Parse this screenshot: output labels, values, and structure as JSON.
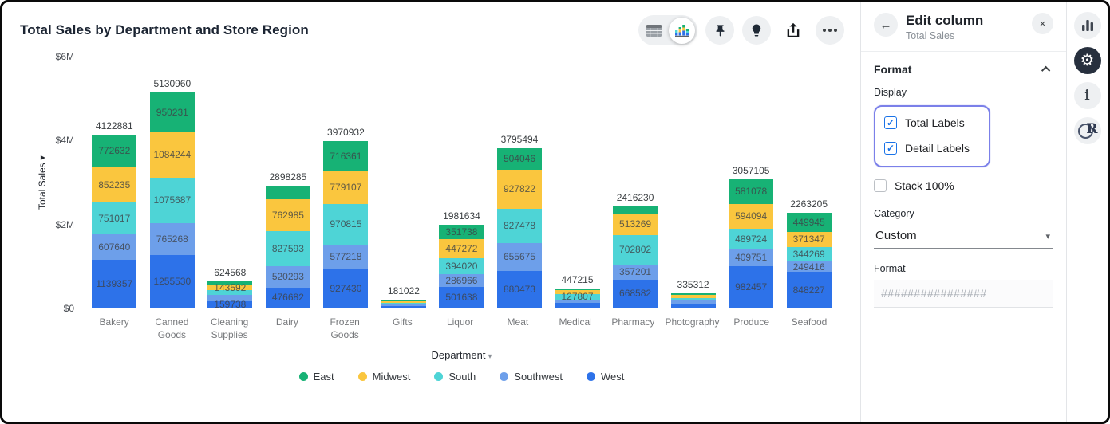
{
  "page_title": "Total Sales by Department and Store Region",
  "toolbar": {
    "icons": [
      "table-view",
      "chart-view",
      "pin",
      "suggest",
      "export",
      "more"
    ],
    "selected_view": "chart-view"
  },
  "chart_data": {
    "type": "bar",
    "subtype": "stacked-vertical",
    "title": "Total Sales by Department and Store Region",
    "xlabel": "Department",
    "ylabel": "Total Sales",
    "ylim": [
      0,
      6000000
    ],
    "y_ticks": [
      {
        "label": "$0",
        "value": 0
      },
      {
        "label": "$2M",
        "value": 2000000
      },
      {
        "label": "$4M",
        "value": 4000000
      },
      {
        "label": "$6M",
        "value": 6000000
      }
    ],
    "grid": false,
    "legend_position": "bottom",
    "series": [
      {
        "name": "East",
        "color": "#17B275"
      },
      {
        "name": "Midwest",
        "color": "#FAC63E"
      },
      {
        "name": "South",
        "color": "#4ED4D6"
      },
      {
        "name": "Southwest",
        "color": "#6D9FEA"
      },
      {
        "name": "West",
        "color": "#2D72E9"
      }
    ],
    "bars": [
      {
        "category": "Bakery",
        "total": 4122881,
        "segments": [
          {
            "region": "East",
            "value": 772632,
            "labeled": true
          },
          {
            "region": "Midwest",
            "value": 852235,
            "labeled": true
          },
          {
            "region": "South",
            "value": 751017,
            "labeled": true
          },
          {
            "region": "Southwest",
            "value": 607640,
            "labeled": true
          },
          {
            "region": "West",
            "value": 1139357,
            "labeled": true
          }
        ]
      },
      {
        "category": "Canned Goods",
        "total": 5130960,
        "segments": [
          {
            "region": "East",
            "value": 950231,
            "labeled": true
          },
          {
            "region": "Midwest",
            "value": 1084244,
            "labeled": true
          },
          {
            "region": "South",
            "value": 1075687,
            "labeled": true
          },
          {
            "region": "Southwest",
            "value": 765268,
            "labeled": true
          },
          {
            "region": "West",
            "value": 1255530,
            "labeled": true
          }
        ]
      },
      {
        "category": "Cleaning Supplies",
        "total": 624568,
        "segments": [
          {
            "region": "East",
            "value": 72000,
            "labeled": false,
            "estimated": true
          },
          {
            "region": "Midwest",
            "value": 143592,
            "labeled": true
          },
          {
            "region": "South",
            "value": 96000,
            "labeled": false,
            "estimated": true
          },
          {
            "region": "Southwest",
            "value": 153238,
            "labeled": false,
            "estimated": true
          },
          {
            "region": "West",
            "value": 159738,
            "labeled": true
          }
        ]
      },
      {
        "category": "Dairy",
        "total": 2898285,
        "segments": [
          {
            "region": "East",
            "value": 310732,
            "labeled": false
          },
          {
            "region": "Midwest",
            "value": 762985,
            "labeled": true
          },
          {
            "region": "South",
            "value": 827593,
            "labeled": true
          },
          {
            "region": "Southwest",
            "value": 520293,
            "labeled": true
          },
          {
            "region": "West",
            "value": 476682,
            "labeled": true
          }
        ]
      },
      {
        "category": "Frozen Goods",
        "total": 3970932,
        "segments": [
          {
            "region": "East",
            "value": 716361,
            "labeled": true
          },
          {
            "region": "Midwest",
            "value": 779107,
            "labeled": true
          },
          {
            "region": "South",
            "value": 970815,
            "labeled": true
          },
          {
            "region": "Southwest",
            "value": 577218,
            "labeled": true
          },
          {
            "region": "West",
            "value": 927430,
            "labeled": true
          }
        ]
      },
      {
        "category": "Gifts",
        "total": 181022,
        "segments": [
          {
            "region": "East",
            "value": 30000,
            "labeled": false,
            "estimated": true
          },
          {
            "region": "Midwest",
            "value": 36000,
            "labeled": false,
            "estimated": true
          },
          {
            "region": "South",
            "value": 36000,
            "labeled": false,
            "estimated": true
          },
          {
            "region": "Southwest",
            "value": 36000,
            "labeled": false,
            "estimated": true
          },
          {
            "region": "West",
            "value": 43022,
            "labeled": false,
            "estimated": true
          }
        ]
      },
      {
        "category": "Liquor",
        "total": 1981634,
        "segments": [
          {
            "region": "East",
            "value": 351738,
            "labeled": true
          },
          {
            "region": "Midwest",
            "value": 447272,
            "labeled": true
          },
          {
            "region": "South",
            "value": 394020,
            "labeled": true
          },
          {
            "region": "Southwest",
            "value": 286966,
            "labeled": true
          },
          {
            "region": "West",
            "value": 501638,
            "labeled": true
          }
        ]
      },
      {
        "category": "Meat",
        "total": 3795494,
        "segments": [
          {
            "region": "East",
            "value": 504046,
            "labeled": true
          },
          {
            "region": "Midwest",
            "value": 927822,
            "labeled": true
          },
          {
            "region": "South",
            "value": 827478,
            "labeled": true
          },
          {
            "region": "Southwest",
            "value": 655675,
            "labeled": true
          },
          {
            "region": "West",
            "value": 880473,
            "labeled": true
          }
        ]
      },
      {
        "category": "Medical",
        "total": 447215,
        "segments": [
          {
            "region": "East",
            "value": 38000,
            "labeled": false,
            "estimated": true
          },
          {
            "region": "Midwest",
            "value": 85000,
            "labeled": false,
            "estimated": true
          },
          {
            "region": "South",
            "value": 127807,
            "labeled": true
          },
          {
            "region": "Southwest",
            "value": 76000,
            "labeled": false,
            "estimated": true
          },
          {
            "region": "West",
            "value": 120408,
            "labeled": false,
            "estimated": true
          }
        ]
      },
      {
        "category": "Pharmacy",
        "total": 2416230,
        "segments": [
          {
            "region": "East",
            "value": 174376,
            "labeled": false
          },
          {
            "region": "Midwest",
            "value": 513269,
            "labeled": true
          },
          {
            "region": "South",
            "value": 702802,
            "labeled": true
          },
          {
            "region": "Southwest",
            "value": 357201,
            "labeled": true
          },
          {
            "region": "West",
            "value": 668582,
            "labeled": true
          }
        ]
      },
      {
        "category": "Photography",
        "total": 335312,
        "segments": [
          {
            "region": "East",
            "value": 38000,
            "labeled": false,
            "estimated": true
          },
          {
            "region": "Midwest",
            "value": 75000,
            "labeled": false,
            "estimated": true
          },
          {
            "region": "South",
            "value": 57000,
            "labeled": false,
            "estimated": true
          },
          {
            "region": "Southwest",
            "value": 76000,
            "labeled": false,
            "estimated": true
          },
          {
            "region": "West",
            "value": 89312,
            "labeled": false,
            "estimated": true
          }
        ]
      },
      {
        "category": "Produce",
        "total": 3057105,
        "segments": [
          {
            "region": "East",
            "value": 581078,
            "labeled": true
          },
          {
            "region": "Midwest",
            "value": 594094,
            "labeled": true
          },
          {
            "region": "South",
            "value": 489724,
            "labeled": true
          },
          {
            "region": "Southwest",
            "value": 409751,
            "labeled": true
          },
          {
            "region": "West",
            "value": 982457,
            "labeled": true
          }
        ]
      },
      {
        "category": "Seafood",
        "total": 2263205,
        "segments": [
          {
            "region": "East",
            "value": 449945,
            "labeled": true
          },
          {
            "region": "Midwest",
            "value": 371347,
            "labeled": true
          },
          {
            "region": "South",
            "value": 344269,
            "labeled": true
          },
          {
            "region": "Southwest",
            "value": 249416,
            "labeled": true
          },
          {
            "region": "West",
            "value": 848227,
            "labeled": true
          }
        ]
      }
    ],
    "x_axis_dropdown": {
      "label": "Department",
      "caret": "▾"
    },
    "y_axis_caret": "▾"
  },
  "panel": {
    "title": "Edit column",
    "subtitle": "Total Sales",
    "back_icon": "←",
    "close_icon": "×",
    "format_section": {
      "title": "Format",
      "display_label": "Display",
      "checkboxes": [
        {
          "label": "Total Labels",
          "checked": true
        },
        {
          "label": "Detail Labels",
          "checked": true
        }
      ],
      "stack_checkbox": {
        "label": "Stack 100%",
        "checked": false
      },
      "category_label": "Category",
      "category_value": "Custom",
      "format_label": "Format",
      "format_placeholder": "################",
      "format_value": ""
    },
    "highlight_color": "#7B80E9",
    "checkbox_accent": "#1A73E8"
  },
  "rail": {
    "icons": [
      "chart-panel",
      "settings-gear",
      "info",
      "r-logo"
    ],
    "active": "settings-gear"
  },
  "glyphs": {
    "check": "✓",
    "caret_down": "▾",
    "gear": "⚙"
  }
}
